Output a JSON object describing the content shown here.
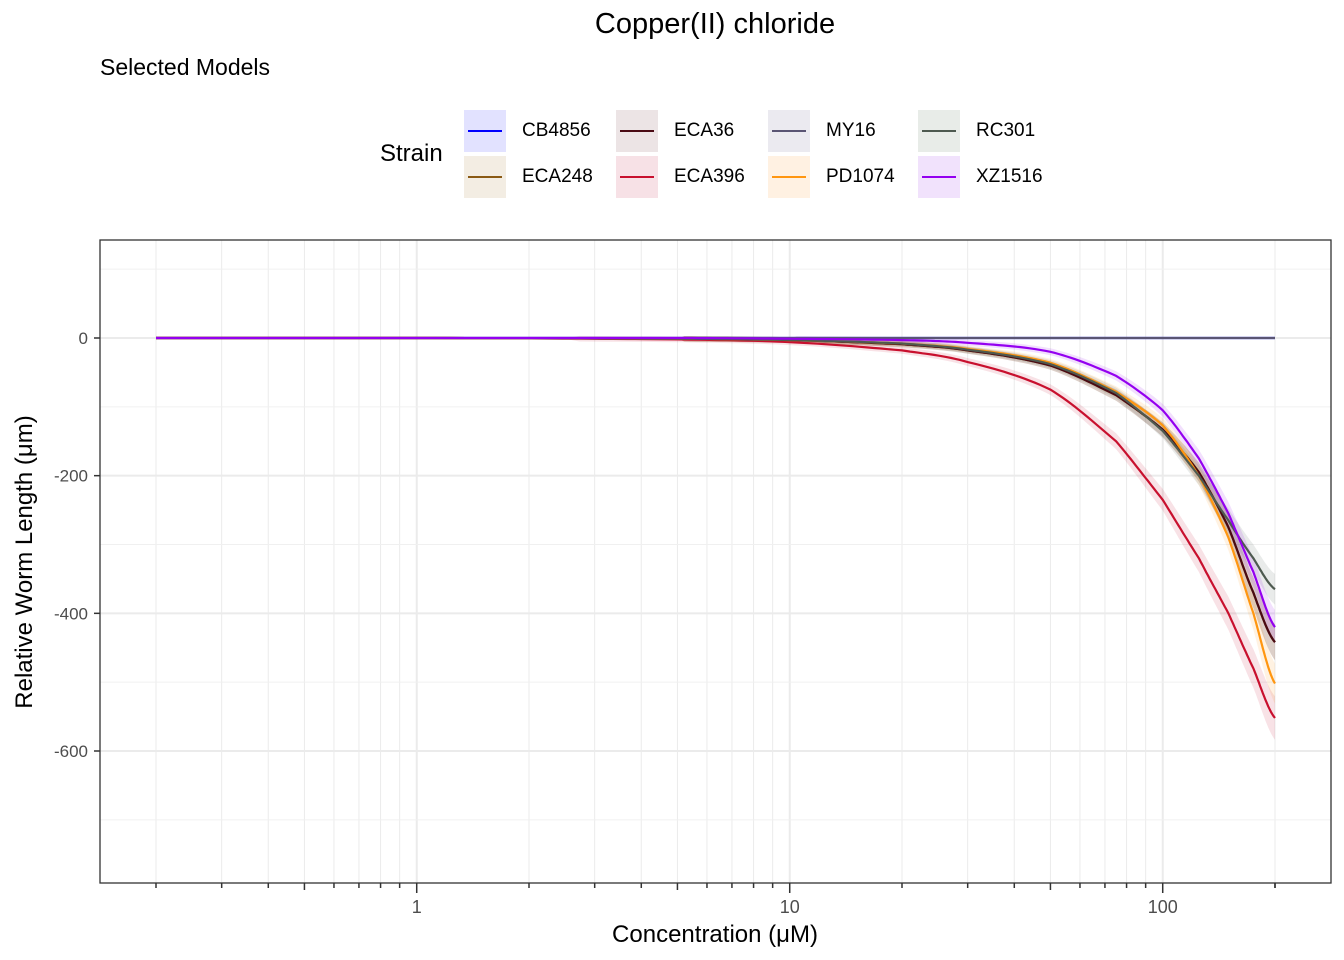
{
  "title": "Copper(II) chloride",
  "subtitle": "Selected Models",
  "legend": {
    "title": "Strain"
  },
  "chart_data": {
    "type": "line",
    "title": "Copper(II) chloride",
    "subtitle": "Selected Models",
    "xlabel": "Concentration (μM)",
    "ylabel": "Relative Worm Length (μm)",
    "x_scale": "log10",
    "xlim": [
      0.2,
      200
    ],
    "ylim": [
      -790,
      140
    ],
    "x_ticks": [
      1,
      10,
      100
    ],
    "x_tick_labels": [
      "1",
      "10",
      "100"
    ],
    "y_ticks": [
      0,
      -200,
      -400,
      -600
    ],
    "y_tick_labels": [
      "0",
      "-200",
      "-400",
      "-600"
    ],
    "grid": true,
    "legend_position": "top",
    "x": [
      0.2,
      1,
      5,
      10,
      20,
      30,
      50,
      75,
      100,
      125,
      150,
      175,
      200
    ],
    "series": [
      {
        "name": "CB4856",
        "color": "#0000FF",
        "fill": "#E2E2FF",
        "values": [
          0,
          0,
          0,
          0,
          0,
          0,
          0,
          0,
          0,
          0,
          0,
          0,
          0
        ]
      },
      {
        "name": "ECA248",
        "color": "#8A5A14",
        "fill": "#F3EDE3",
        "values": [
          0,
          0,
          -1,
          -3,
          -9,
          -18,
          -40,
          -83,
          -133,
          -195,
          -275,
          -370,
          -442
        ]
      },
      {
        "name": "ECA36",
        "color": "#4A0A14",
        "fill": "#ECE4E5",
        "values": [
          0,
          0,
          -1,
          -3,
          -9,
          -18,
          -40,
          -83,
          -133,
          -195,
          -275,
          -370,
          -442
        ]
      },
      {
        "name": "ECA396",
        "color": "#C8102E",
        "fill": "#F7E1E6",
        "values": [
          0,
          0,
          -2,
          -6,
          -18,
          -35,
          -75,
          -150,
          -235,
          -320,
          -400,
          -480,
          -552
        ]
      },
      {
        "name": "MY16",
        "color": "#5A5574",
        "fill": "#EBEAF0",
        "values": [
          0,
          0,
          0,
          0,
          0,
          0,
          0,
          0,
          0,
          0,
          0,
          0,
          0
        ]
      },
      {
        "name": "PD1074",
        "color": "#FF9610",
        "fill": "#FFF1E2",
        "values": [
          0,
          0,
          -1,
          -3,
          -8,
          -16,
          -36,
          -78,
          -127,
          -200,
          -290,
          -400,
          -502
        ]
      },
      {
        "name": "RC301",
        "color": "#4E5A50",
        "fill": "#E8ECE8",
        "values": [
          0,
          0,
          -1,
          -3,
          -8,
          -17,
          -38,
          -80,
          -135,
          -200,
          -265,
          -320,
          -365
        ]
      },
      {
        "name": "XZ1516",
        "color": "#9400F0",
        "fill": "#F1E2FC",
        "values": [
          0,
          0,
          0,
          -1,
          -3,
          -7,
          -20,
          -55,
          -105,
          -175,
          -255,
          -340,
          -420
        ]
      }
    ]
  }
}
